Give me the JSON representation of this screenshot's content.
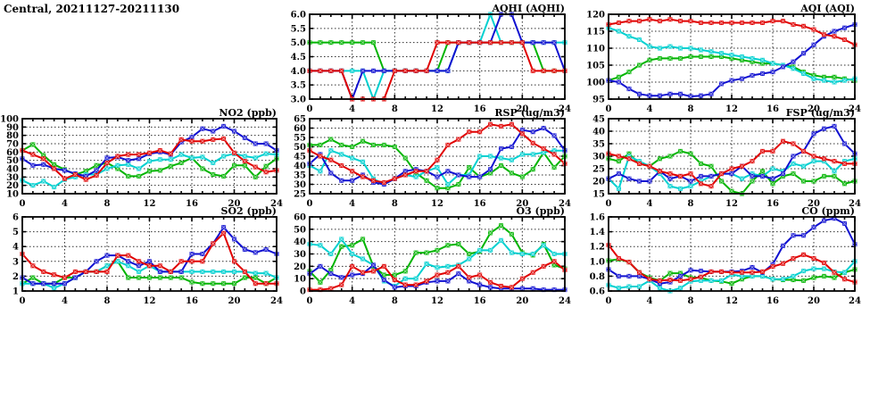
{
  "title": "Central, 20211127-20211130",
  "palette": {
    "red": "#e00000",
    "green": "#00b400",
    "blue": "#1010d0",
    "cyan": "#00d0d0"
  },
  "x_axis": {
    "min": 0,
    "max": 24,
    "tick_step": 4,
    "minor_step": 1,
    "tick_labels": [
      "0",
      "4",
      "8",
      "12",
      "16",
      "20",
      "24"
    ]
  },
  "chart_data": [
    {
      "id": "aqhi",
      "type": "line",
      "title": "AQHI (AQHI)",
      "col": 2,
      "row": 1,
      "ymin": 3.0,
      "ymax": 6.0,
      "ystep": 0.5,
      "ydecimals": 1,
      "grid": true,
      "series": [
        {
          "name": "green",
          "values": [
            5,
            5,
            5,
            5,
            5,
            5,
            5,
            4,
            4,
            4,
            4,
            4,
            4,
            5,
            5,
            5,
            5,
            5,
            5,
            5,
            5,
            5,
            4,
            4,
            4
          ]
        },
        {
          "name": "cyan",
          "values": [
            4,
            4,
            4,
            4,
            4,
            4,
            3,
            4,
            4,
            4,
            4,
            4,
            4,
            4,
            5,
            5,
            5,
            6,
            5,
            5,
            5,
            5,
            5,
            5,
            5
          ]
        },
        {
          "name": "blue",
          "values": [
            4,
            4,
            4,
            4,
            3,
            4,
            4,
            4,
            4,
            4,
            4,
            4,
            4,
            4,
            5,
            5,
            5,
            5,
            6,
            6,
            5,
            5,
            5,
            5,
            4
          ]
        },
        {
          "name": "red",
          "values": [
            4,
            4,
            4,
            4,
            3,
            3,
            3,
            3,
            4,
            4,
            4,
            4,
            5,
            5,
            5,
            5,
            5,
            5,
            5,
            5,
            5,
            4,
            4,
            4,
            4
          ]
        }
      ]
    },
    {
      "id": "aqi",
      "type": "line",
      "title": "AQI (AQI)",
      "col": 3,
      "row": 1,
      "ymin": 95,
      "ymax": 120,
      "ystep": 5,
      "ydecimals": 0,
      "grid": true,
      "series": [
        {
          "name": "green",
          "values": [
            100.5,
            101.5,
            103,
            105,
            106.5,
            107,
            107,
            107,
            107.5,
            107.5,
            107.5,
            107.5,
            107,
            106.5,
            106,
            105.5,
            105.5,
            105,
            104.5,
            103,
            102,
            101.5,
            101.5,
            101,
            100.5
          ]
        },
        {
          "name": "cyan",
          "values": [
            116,
            115,
            113.5,
            112.5,
            110.5,
            110,
            110.5,
            110,
            110,
            109.5,
            109,
            108.5,
            108,
            107.5,
            107,
            106.5,
            105.5,
            105,
            104,
            102.5,
            101,
            100.5,
            100,
            100.5,
            101
          ]
        },
        {
          "name": "blue",
          "values": [
            100.5,
            100,
            98,
            96.5,
            96,
            96,
            96.5,
            96.5,
            95.8,
            96,
            96.5,
            99.5,
            100.5,
            101,
            102,
            102.5,
            103,
            104.5,
            106,
            108.5,
            111,
            113.5,
            115,
            116,
            117
          ]
        },
        {
          "name": "red",
          "values": [
            117,
            117.5,
            118,
            118,
            118.5,
            118,
            118.5,
            118,
            118,
            117.5,
            117.5,
            117.5,
            117.5,
            117.5,
            117.5,
            117.5,
            118,
            118,
            117,
            116.5,
            115.5,
            114,
            113.5,
            112.5,
            111
          ]
        }
      ]
    },
    {
      "id": "no2",
      "type": "line",
      "title": "NO2 (ppb)",
      "col": 1,
      "row": 2,
      "ymin": 10,
      "ymax": 100,
      "ystep": 10,
      "ydecimals": 0,
      "grid": true,
      "series": [
        {
          "name": "green",
          "values": [
            62,
            69,
            56,
            45,
            39,
            33,
            37,
            44,
            47,
            40,
            31,
            31,
            37,
            38,
            43,
            47,
            53,
            40,
            33,
            31,
            44,
            44,
            30,
            43,
            52
          ]
        },
        {
          "name": "cyan",
          "values": [
            26,
            20,
            25,
            18,
            27,
            30,
            33,
            33,
            40,
            44,
            45,
            40,
            49,
            51,
            51,
            57,
            53,
            54,
            47,
            55,
            58,
            55,
            53,
            58,
            57
          ]
        },
        {
          "name": "blue",
          "values": [
            52,
            44,
            45,
            40,
            38,
            34,
            31,
            38,
            53,
            54,
            50,
            52,
            58,
            60,
            57,
            72,
            78,
            88,
            85,
            91,
            85,
            77,
            70,
            70,
            62
          ]
        },
        {
          "name": "red",
          "values": [
            62,
            57,
            52,
            40,
            28,
            33,
            27,
            32,
            47,
            55,
            57,
            57,
            59,
            62,
            58,
            75,
            73,
            73,
            75,
            76,
            59,
            49,
            42,
            36,
            38
          ]
        }
      ]
    },
    {
      "id": "rsp",
      "type": "line",
      "title": "RSP (ug/m3)",
      "col": 2,
      "row": 2,
      "ymin": 25,
      "ymax": 65,
      "ystep": 5,
      "ydecimals": 0,
      "grid": true,
      "series": [
        {
          "name": "green",
          "values": [
            51,
            51,
            54,
            51,
            50,
            53,
            51,
            51,
            50,
            44,
            36,
            32,
            28,
            28,
            30,
            39,
            34,
            36,
            40,
            36,
            34,
            38,
            47,
            39,
            45
          ]
        },
        {
          "name": "cyan",
          "values": [
            40,
            37,
            48,
            46,
            44,
            42,
            33,
            30,
            33,
            35,
            34,
            37,
            39,
            30,
            35,
            35,
            45,
            45,
            44,
            43,
            46,
            46,
            47,
            48,
            48
          ]
        },
        {
          "name": "blue",
          "values": [
            41,
            46,
            36,
            32,
            32,
            35,
            31,
            30,
            33,
            37,
            38,
            37,
            34,
            37,
            35,
            34,
            34,
            38,
            49,
            50,
            59,
            58,
            60,
            56,
            48
          ]
        },
        {
          "name": "red",
          "values": [
            48,
            45,
            43,
            40,
            37,
            34,
            32,
            31,
            33,
            35,
            37,
            37,
            43,
            51,
            54,
            58,
            58,
            62,
            61,
            62,
            57,
            52,
            49,
            46,
            41
          ]
        }
      ]
    },
    {
      "id": "fsp",
      "type": "line",
      "title": "FSP (ug/m3)",
      "col": 3,
      "row": 2,
      "ymin": 15,
      "ymax": 45,
      "ystep": 5,
      "ydecimals": 0,
      "grid": true,
      "series": [
        {
          "name": "green",
          "values": [
            29,
            28,
            31,
            27,
            26,
            29,
            30,
            32,
            31,
            27,
            26,
            20,
            16,
            15,
            20,
            24,
            19,
            22,
            23,
            20,
            20,
            22,
            22,
            19,
            20
          ]
        },
        {
          "name": "cyan",
          "values": [
            21,
            17,
            30,
            28,
            26,
            23,
            18,
            17,
            18,
            20,
            22,
            23,
            23,
            21,
            23,
            22,
            25,
            24,
            27,
            26,
            28,
            28,
            24,
            28,
            29
          ]
        },
        {
          "name": "blue",
          "values": [
            21,
            23,
            21,
            20,
            20,
            24,
            21,
            22,
            20,
            22,
            22,
            23,
            23,
            26,
            22,
            22,
            21,
            23,
            30,
            32,
            39,
            41,
            42,
            35,
            31
          ]
        },
        {
          "name": "red",
          "values": [
            31,
            30,
            29,
            27,
            26,
            24,
            23,
            22,
            23,
            19,
            18,
            23,
            25,
            26,
            28,
            32,
            32,
            36,
            35,
            32,
            30,
            29,
            28,
            27,
            27
          ]
        }
      ]
    },
    {
      "id": "so2",
      "type": "line",
      "title": "SO2 (ppb)",
      "col": 1,
      "row": 3,
      "ymin": 1,
      "ymax": 6,
      "ystep": 1,
      "ydecimals": 0,
      "grid": true,
      "series": [
        {
          "name": "green",
          "values": [
            1.5,
            1.9,
            1.5,
            1.5,
            1.9,
            1.9,
            2.3,
            2.3,
            2.7,
            3.0,
            1.9,
            1.9,
            1.9,
            1.9,
            1.9,
            1.9,
            1.6,
            1.5,
            1.5,
            1.5,
            1.5,
            1.9,
            1.9,
            1.5,
            1.9
          ]
        },
        {
          "name": "cyan",
          "values": [
            1.5,
            1.5,
            1.5,
            1.2,
            1.5,
            1.9,
            2.3,
            2.3,
            2.7,
            3.0,
            2.7,
            2.3,
            2.7,
            2.3,
            2.3,
            2.3,
            2.3,
            2.3,
            2.3,
            2.3,
            2.3,
            2.3,
            2.2,
            2.2,
            1.9
          ]
        },
        {
          "name": "blue",
          "values": [
            1.9,
            1.5,
            1.5,
            1.5,
            1.5,
            1.9,
            2.3,
            3.0,
            3.4,
            3.4,
            3.0,
            2.7,
            3.0,
            2.3,
            2.3,
            2.3,
            3.5,
            3.5,
            4.2,
            5.3,
            4.5,
            3.8,
            3.6,
            3.8,
            3.5
          ]
        },
        {
          "name": "red",
          "values": [
            3.5,
            2.7,
            2.3,
            2.1,
            1.9,
            2.3,
            2.3,
            2.3,
            2.3,
            3.4,
            3.4,
            3.0,
            2.7,
            2.7,
            2.3,
            3.0,
            3.0,
            3.0,
            4.2,
            4.9,
            3.0,
            2.3,
            1.5,
            1.5,
            1.5
          ]
        }
      ]
    },
    {
      "id": "o3",
      "type": "line",
      "title": "O3 (ppb)",
      "col": 2,
      "row": 3,
      "ymin": 0,
      "ymax": 60,
      "ystep": 10,
      "ydecimals": 0,
      "grid": true,
      "series": [
        {
          "name": "green",
          "values": [
            16,
            7,
            17,
            36,
            37,
            42,
            20,
            13,
            13,
            16,
            31,
            31,
            33,
            37,
            38,
            30,
            32,
            47,
            53,
            46,
            31,
            29,
            38,
            21,
            18
          ]
        },
        {
          "name": "cyan",
          "values": [
            38,
            37,
            30,
            42,
            30,
            26,
            21,
            8,
            4,
            10,
            10,
            22,
            19,
            20,
            21,
            26,
            33,
            33,
            41,
            31,
            30,
            30,
            37,
            30,
            30
          ]
        },
        {
          "name": "blue",
          "values": [
            14,
            20,
            14,
            11,
            13,
            14,
            21,
            9,
            3,
            4,
            4,
            7,
            8,
            8,
            14,
            8,
            5,
            3,
            2,
            2,
            2,
            2,
            1,
            1,
            1
          ]
        },
        {
          "name": "red",
          "values": [
            1,
            1,
            2,
            5,
            20,
            15,
            16,
            20,
            9,
            5,
            5,
            8,
            13,
            15,
            20,
            11,
            13,
            7,
            4,
            3,
            10,
            15,
            20,
            24,
            17
          ]
        }
      ]
    },
    {
      "id": "co",
      "type": "line",
      "title": "CO (ppm)",
      "col": 3,
      "row": 3,
      "ymin": 0.6,
      "ymax": 1.6,
      "ystep": 0.2,
      "ydecimals": 1,
      "grid": true,
      "series": [
        {
          "name": "green",
          "values": [
            1.01,
            1.03,
            0.99,
            0.85,
            0.78,
            0.74,
            0.84,
            0.84,
            0.78,
            0.78,
            0.74,
            0.73,
            0.7,
            0.76,
            0.8,
            0.8,
            0.76,
            0.75,
            0.75,
            0.74,
            0.78,
            0.8,
            0.78,
            0.85,
            0.89
          ]
        },
        {
          "name": "cyan",
          "values": [
            0.68,
            0.64,
            0.66,
            0.66,
            0.74,
            0.64,
            0.6,
            0.64,
            0.73,
            0.74,
            0.74,
            0.74,
            0.82,
            0.8,
            0.8,
            0.8,
            0.76,
            0.76,
            0.8,
            0.87,
            0.9,
            0.9,
            0.86,
            0.85,
            1.0
          ]
        },
        {
          "name": "blue",
          "values": [
            0.89,
            0.8,
            0.8,
            0.8,
            0.76,
            0.7,
            0.72,
            0.8,
            0.88,
            0.87,
            0.86,
            0.86,
            0.86,
            0.87,
            0.92,
            0.85,
            0.96,
            1.21,
            1.35,
            1.35,
            1.46,
            1.55,
            1.58,
            1.51,
            1.23
          ]
        },
        {
          "name": "red",
          "values": [
            1.22,
            1.04,
            0.99,
            0.85,
            0.76,
            0.74,
            0.75,
            0.74,
            0.76,
            0.79,
            0.86,
            0.86,
            0.85,
            0.85,
            0.85,
            0.86,
            0.93,
            0.97,
            1.04,
            1.09,
            1.04,
            0.98,
            0.85,
            0.76,
            0.72
          ]
        }
      ]
    }
  ]
}
